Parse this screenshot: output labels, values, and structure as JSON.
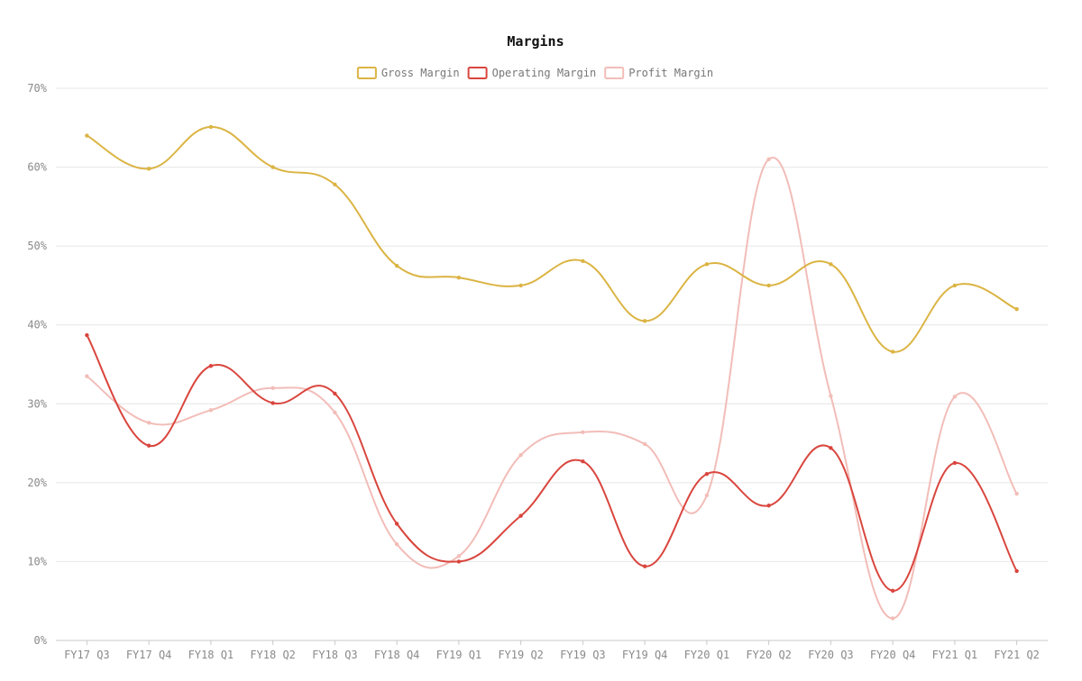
{
  "chart_data": {
    "type": "line",
    "title": "Margins",
    "xlabel": "",
    "ylabel": "",
    "ylim": [
      0,
      70
    ],
    "y_tick_values": [
      0,
      10,
      20,
      30,
      40,
      50,
      60,
      70
    ],
    "y_tick_labels": [
      "0%",
      "10%",
      "20%",
      "30%",
      "40%",
      "50%",
      "60%",
      "70%"
    ],
    "grid": true,
    "legend_position": "top-center",
    "categories": [
      "FY17 Q3",
      "FY17 Q4",
      "FY18 Q1",
      "FY18 Q2",
      "FY18 Q3",
      "FY18 Q4",
      "FY19 Q1",
      "FY19 Q2",
      "FY19 Q3",
      "FY19 Q4",
      "FY20 Q1",
      "FY20 Q2",
      "FY20 Q3",
      "FY20 Q4",
      "FY21 Q1",
      "FY21 Q2"
    ],
    "series": [
      {
        "name": "Gross Margin",
        "color": "#dbb443",
        "values": [
          64.0,
          59.8,
          65.1,
          60.0,
          57.8,
          47.5,
          46.0,
          45.0,
          48.1,
          40.5,
          47.7,
          45.0,
          47.7,
          36.6,
          45.0,
          42.0
        ]
      },
      {
        "name": "Operating Margin",
        "color": "#d9463e",
        "values": [
          38.7,
          24.7,
          34.8,
          30.1,
          31.3,
          14.8,
          10.0,
          15.8,
          22.7,
          9.4,
          21.1,
          17.1,
          24.4,
          6.3,
          22.5,
          8.8
        ]
      },
      {
        "name": "Profit Margin",
        "color": "#f2bdb8",
        "values": [
          33.5,
          27.6,
          29.2,
          32.0,
          28.9,
          12.2,
          10.7,
          23.5,
          26.4,
          24.9,
          18.4,
          61.0,
          31.0,
          2.8,
          30.9,
          18.6
        ]
      }
    ]
  }
}
